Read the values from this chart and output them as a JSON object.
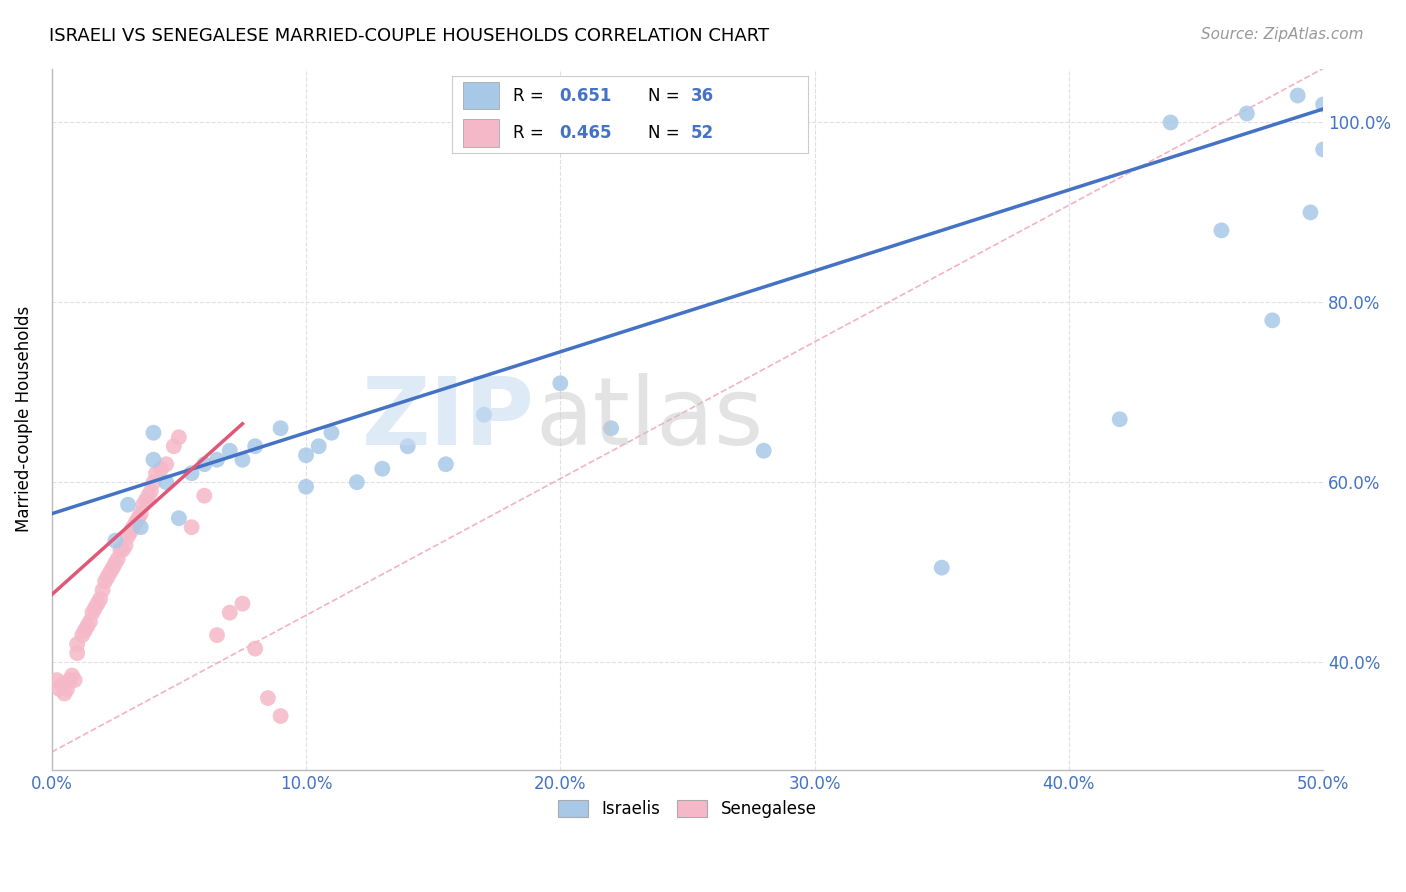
{
  "title": "ISRAELI VS SENEGALESE MARRIED-COUPLE HOUSEHOLDS CORRELATION CHART",
  "source": "Source: ZipAtlas.com",
  "ylabel_label": "Married-couple Households",
  "xmin": 0.0,
  "xmax": 0.5,
  "ymin": 0.28,
  "ymax": 1.06,
  "israelis_R": "0.651",
  "israelis_N": "36",
  "senegalese_R": "0.465",
  "senegalese_N": "52",
  "israelis_color": "#a8c8e8",
  "senegalese_color": "#f5b8c8",
  "israelis_line_color": "#4472c4",
  "senegalese_line_color": "#e05878",
  "diagonal_color": "#e8b0c0",
  "legend_color_blue": "#4472c4",
  "grid_color": "#e0e0e0",
  "background_color": "#ffffff",
  "israelis_x": [
    0.025,
    0.03,
    0.035,
    0.04,
    0.04,
    0.045,
    0.05,
    0.055,
    0.06,
    0.065,
    0.07,
    0.075,
    0.08,
    0.09,
    0.1,
    0.1,
    0.105,
    0.11,
    0.12,
    0.13,
    0.14,
    0.155,
    0.17,
    0.2,
    0.22,
    0.28,
    0.35,
    0.42,
    0.44,
    0.46,
    0.47,
    0.48,
    0.49,
    0.495,
    0.5,
    0.5
  ],
  "israelis_y": [
    0.535,
    0.575,
    0.55,
    0.625,
    0.655,
    0.6,
    0.56,
    0.61,
    0.62,
    0.625,
    0.635,
    0.625,
    0.64,
    0.66,
    0.595,
    0.63,
    0.64,
    0.655,
    0.6,
    0.615,
    0.64,
    0.62,
    0.675,
    0.71,
    0.66,
    0.635,
    0.505,
    0.67,
    1.0,
    0.88,
    1.01,
    0.78,
    1.03,
    0.9,
    1.02,
    0.97
  ],
  "senegalese_x": [
    0.002,
    0.003,
    0.004,
    0.005,
    0.006,
    0.007,
    0.008,
    0.009,
    0.01,
    0.01,
    0.012,
    0.013,
    0.014,
    0.015,
    0.016,
    0.017,
    0.018,
    0.019,
    0.02,
    0.021,
    0.022,
    0.023,
    0.024,
    0.025,
    0.026,
    0.027,
    0.028,
    0.029,
    0.03,
    0.031,
    0.032,
    0.033,
    0.034,
    0.035,
    0.036,
    0.037,
    0.038,
    0.039,
    0.04,
    0.041,
    0.043,
    0.045,
    0.048,
    0.05,
    0.055,
    0.06,
    0.065,
    0.07,
    0.075,
    0.08,
    0.085,
    0.09
  ],
  "senegalese_y": [
    0.38,
    0.37,
    0.375,
    0.365,
    0.37,
    0.38,
    0.385,
    0.38,
    0.41,
    0.42,
    0.43,
    0.435,
    0.44,
    0.445,
    0.455,
    0.46,
    0.465,
    0.47,
    0.48,
    0.49,
    0.495,
    0.5,
    0.505,
    0.51,
    0.515,
    0.525,
    0.525,
    0.53,
    0.54,
    0.545,
    0.55,
    0.555,
    0.56,
    0.565,
    0.575,
    0.58,
    0.585,
    0.59,
    0.6,
    0.61,
    0.615,
    0.62,
    0.64,
    0.65,
    0.55,
    0.585,
    0.43,
    0.455,
    0.465,
    0.415,
    0.36,
    0.34
  ]
}
